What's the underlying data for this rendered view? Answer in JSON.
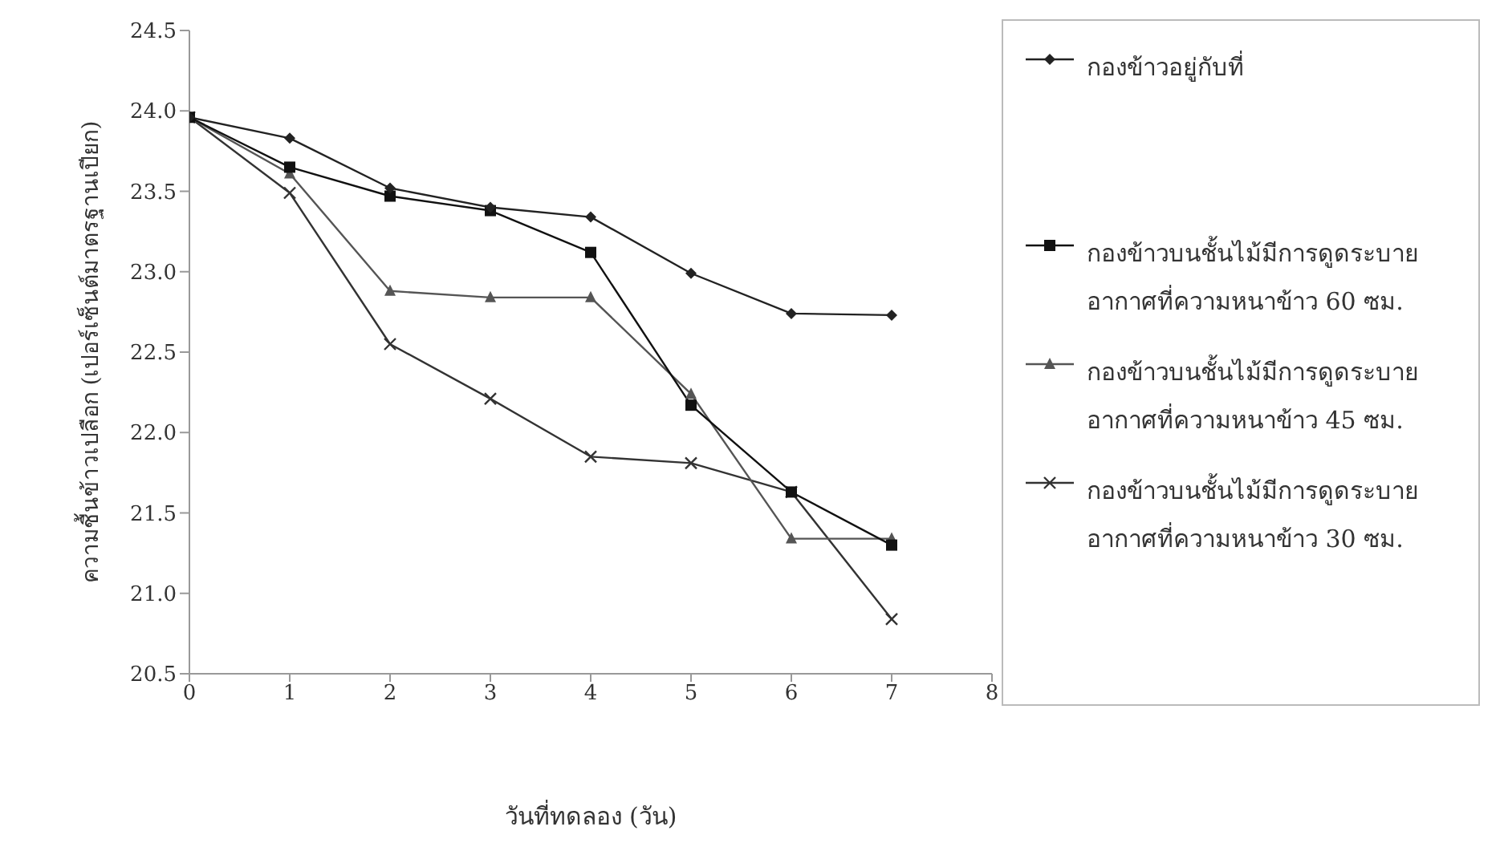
{
  "chart_data": {
    "type": "line",
    "xlabel": "วันที่ทดลอง (วัน)",
    "ylabel": "ความชื้นข้าวเปลือก (เปอร์เซ็นต์มาตรฐานเปียก)",
    "x": [
      0,
      1,
      2,
      3,
      4,
      5,
      6,
      7
    ],
    "xlim": [
      0,
      8
    ],
    "xticks": [
      0,
      1,
      2,
      3,
      4,
      5,
      6,
      7,
      8
    ],
    "ylim": [
      20.5,
      24.5
    ],
    "yticks": [
      {
        "value": 20.5,
        "label": "20.5"
      },
      {
        "value": 21,
        "label": "21.0"
      },
      {
        "value": 21.5,
        "label": "21.5"
      },
      {
        "value": 22,
        "label": "22.0"
      },
      {
        "value": 22.5,
        "label": "22.5"
      },
      {
        "value": 23,
        "label": "23.0"
      },
      {
        "value": 23.5,
        "label": "23.5"
      },
      {
        "value": 24,
        "label": "24.0"
      },
      {
        "value": 24.5,
        "label": "24.5"
      }
    ],
    "grid": false,
    "legend": "right",
    "line_style": "solid",
    "series": [
      {
        "name": "กองข้าวอยู่กับที่",
        "color": "#222222",
        "marker": "diamond",
        "values": [
          23.96,
          23.83,
          23.52,
          23.4,
          23.34,
          22.99,
          22.74,
          22.73
        ]
      },
      {
        "name": "กองข้าวบนชั้นไม้มีการดูดระบายอากาศที่ความหนาข้าว 60 ซม.",
        "color": "#111111",
        "marker": "square",
        "values": [
          23.96,
          23.65,
          23.47,
          23.38,
          23.12,
          22.17,
          21.63,
          21.3
        ]
      },
      {
        "name": "กองข้าวบนชั้นไม้มีการดูดระบายอากาศที่ความหนาข้าว 45 ซม.",
        "color": "#555555",
        "marker": "triangle",
        "values": [
          23.96,
          23.61,
          22.88,
          22.84,
          22.84,
          22.24,
          21.34,
          21.34
        ]
      },
      {
        "name": "กองข้าวบนชั้นไม้มีการดูดระบายอากาศที่ความหนาข้าว 30 ซม.",
        "color": "#333333",
        "marker": "cross",
        "values": [
          23.96,
          23.49,
          22.55,
          22.21,
          21.85,
          21.81,
          21.63,
          20.84
        ]
      }
    ]
  }
}
